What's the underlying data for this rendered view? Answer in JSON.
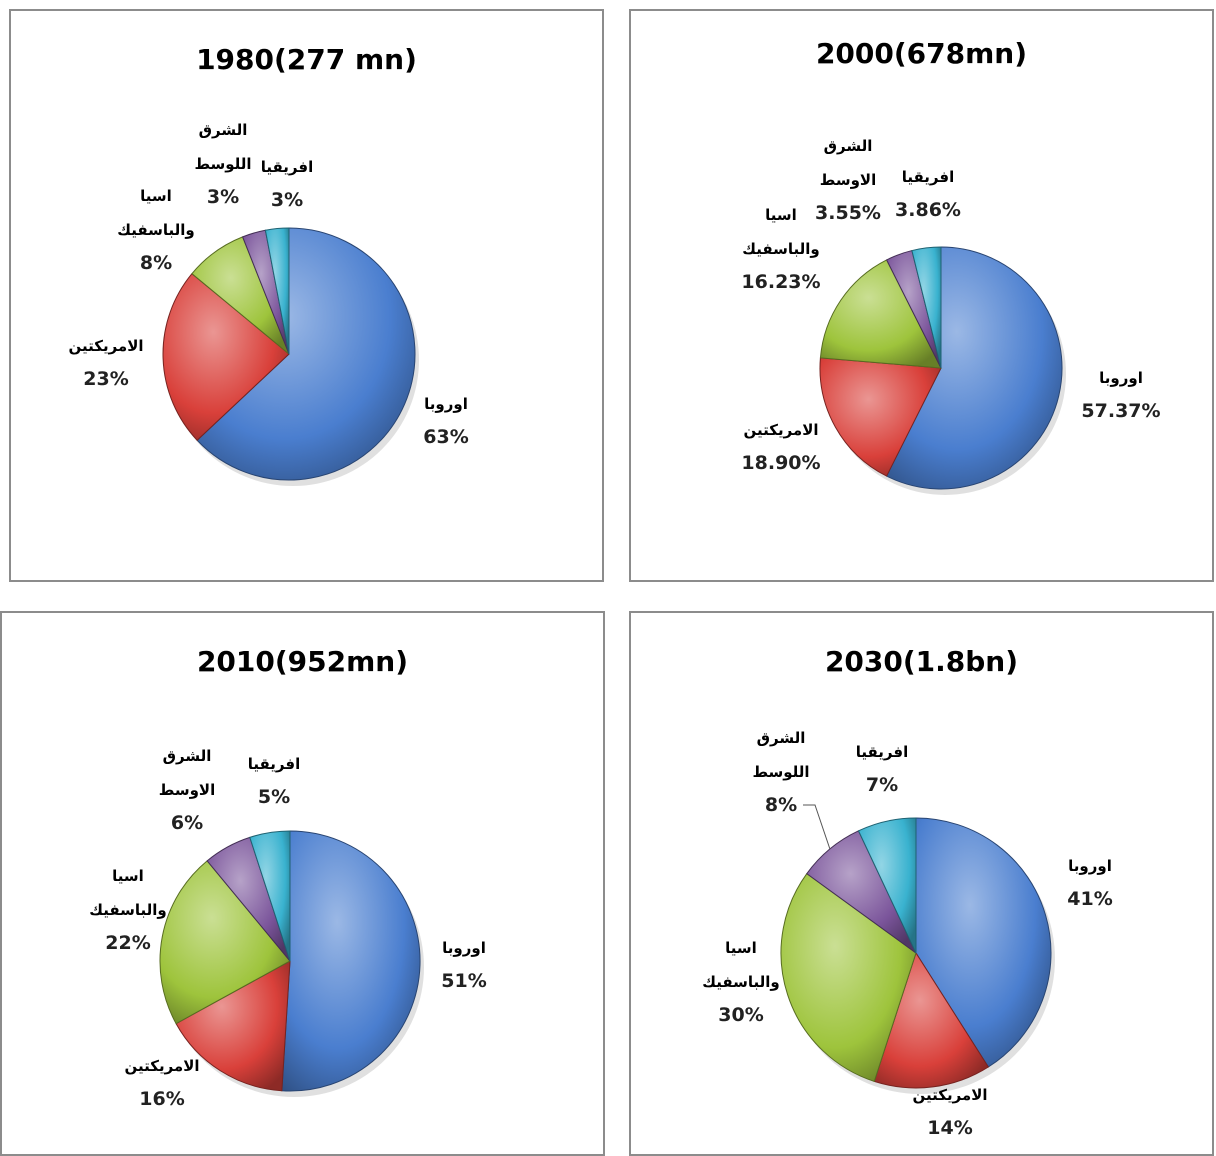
{
  "colors": {
    "europe": "#4a7ecf",
    "americas": "#d9403a",
    "asia_pacific": "#9ec43c",
    "middle_east": "#7b559b",
    "africa": "#39b2cf"
  },
  "chart_data": [
    {
      "type": "pie",
      "title": "1980(277 mn)",
      "slices": [
        {
          "key": "europe",
          "name": "اوروبا",
          "value": 63,
          "label": "63%"
        },
        {
          "key": "americas",
          "name": "الامريكتين",
          "value": 23,
          "label": "23%"
        },
        {
          "key": "asia_pacific",
          "name": [
            "اسيا",
            "والباسفيك"
          ],
          "value": 8,
          "label": "8%"
        },
        {
          "key": "middle_east",
          "name": [
            "الشرق",
            "اللوسط"
          ],
          "value": 3,
          "label": "3%"
        },
        {
          "key": "africa",
          "name": "افريقيا",
          "value": 3,
          "label": "3%"
        }
      ]
    },
    {
      "type": "pie",
      "title": "2000(678mn)",
      "slices": [
        {
          "key": "europe",
          "name": "اوروبا",
          "value": 57.37,
          "label": "57.37%"
        },
        {
          "key": "americas",
          "name": "الامريكتين",
          "value": 18.9,
          "label": "18.90%"
        },
        {
          "key": "asia_pacific",
          "name": [
            "اسيا",
            "والباسفيك"
          ],
          "value": 16.23,
          "label": "16.23%"
        },
        {
          "key": "middle_east",
          "name": [
            "الشرق",
            "الاوسط"
          ],
          "value": 3.55,
          "label": "3.55%"
        },
        {
          "key": "africa",
          "name": "افريقيا",
          "value": 3.86,
          "label": "3.86%"
        }
      ]
    },
    {
      "type": "pie",
      "title": "2010(952mn)",
      "slices": [
        {
          "key": "europe",
          "name": "اوروبا",
          "value": 51,
          "label": "51%"
        },
        {
          "key": "americas",
          "name": "الامريكتين",
          "value": 16,
          "label": "16%"
        },
        {
          "key": "asia_pacific",
          "name": [
            "اسيا",
            "والباسفيك"
          ],
          "value": 22,
          "label": "22%"
        },
        {
          "key": "middle_east",
          "name": [
            "الشرق",
            "الاوسط"
          ],
          "value": 6,
          "label": "6%"
        },
        {
          "key": "africa",
          "name": "افريقيا",
          "value": 5,
          "label": "5%"
        }
      ]
    },
    {
      "type": "pie",
      "title": "2030(1.8bn)",
      "slices": [
        {
          "key": "europe",
          "name": "اوروبا",
          "value": 41,
          "label": "41%"
        },
        {
          "key": "americas",
          "name": "الامريكتين",
          "value": 14,
          "label": "14%"
        },
        {
          "key": "asia_pacific",
          "name": [
            "اسيا",
            "والباسفيك"
          ],
          "value": 30,
          "label": "30%"
        },
        {
          "key": "middle_east",
          "name": [
            "الشرق",
            "اللوسط"
          ],
          "value": 8,
          "label": "8%"
        },
        {
          "key": "africa",
          "name": "افريقيا",
          "value": 7,
          "label": "7%"
        }
      ]
    }
  ]
}
